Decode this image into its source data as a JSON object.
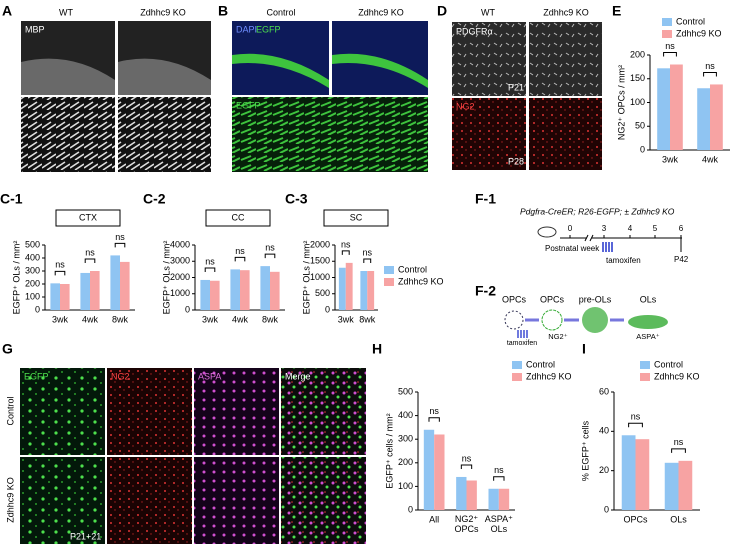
{
  "figure": {
    "A": {
      "label": "A",
      "columns": [
        "WT",
        "Zdhhc9 KO"
      ],
      "stain": "MBP"
    },
    "B": {
      "label": "B",
      "columns": [
        "Control",
        "Zdhhc9 KO"
      ],
      "top_stains": [
        "DAPI",
        "EGFP"
      ],
      "bottom_stain": "EGFP"
    },
    "D": {
      "label": "D",
      "columns": [
        "WT",
        "Zdhhc9 KO"
      ],
      "top_stain": "PDGFRα",
      "top_age": "P21",
      "bottom_stain": "NG2",
      "bottom_age": "P28"
    },
    "F1": {
      "label": "F-1",
      "genotype": "Pdgfra-CreER; R26-EGFP; ± Zdhhc9 KO",
      "weeks": [
        "0",
        "3",
        "4",
        "5",
        "6"
      ],
      "axis_label": "Postnatal week",
      "treatment": "tamoxifen",
      "end": "P42"
    },
    "F2": {
      "label": "F-2",
      "stages": [
        "OPCs",
        "OPCs",
        "pre-OLs",
        "OLs"
      ],
      "treatment": "tamoxifen",
      "markers": [
        "NG2⁺",
        "ASPA⁺"
      ]
    },
    "G": {
      "label": "G",
      "channels": [
        "EGFP",
        "NG2",
        "ASPA",
        "Merge"
      ],
      "rows": [
        "Control",
        "Zdhhc9 KO"
      ],
      "age": "P21+21"
    }
  },
  "chart_data": [
    {
      "type": "bar",
      "panel": "E",
      "y_label": "NG2⁺ OPCs / mm²",
      "categories": [
        "3wk",
        "4wk"
      ],
      "series": [
        {
          "name": "Control",
          "color": "#8fc4f2",
          "values": [
            172,
            130
          ]
        },
        {
          "name": "Zdhhc9 KO",
          "color": "#f7a3a3",
          "values": [
            180,
            138
          ]
        }
      ],
      "ylim": [
        0,
        200
      ],
      "yticks": [
        0,
        50,
        100,
        150,
        200
      ],
      "annotations": [
        "ns",
        "ns"
      ]
    },
    {
      "type": "bar",
      "panel": "C-1",
      "title": "CTX",
      "y_label": "EGFP⁺ OLs / mm²",
      "categories": [
        "3wk",
        "4wk",
        "8wk"
      ],
      "series": [
        {
          "color": "#8fc4f2",
          "values": [
            205,
            285,
            420
          ]
        },
        {
          "color": "#f7a3a3",
          "values": [
            200,
            300,
            370
          ]
        }
      ],
      "ylim": [
        0,
        500
      ],
      "yticks": [
        0,
        100,
        200,
        300,
        400,
        500
      ],
      "annotations": [
        "ns",
        "ns",
        "ns"
      ]
    },
    {
      "type": "bar",
      "panel": "C-2",
      "title": "CC",
      "y_label": "EGFP⁺ OLs / mm²",
      "categories": [
        "3wk",
        "4wk",
        "8wk"
      ],
      "series": [
        {
          "color": "#8fc4f2",
          "values": [
            1850,
            2500,
            2700
          ]
        },
        {
          "color": "#f7a3a3",
          "values": [
            1800,
            2450,
            2350
          ]
        }
      ],
      "ylim": [
        0,
        4000
      ],
      "yticks": [
        0,
        1000,
        2000,
        3000,
        4000
      ],
      "annotations": [
        "ns",
        "ns",
        "ns"
      ]
    },
    {
      "type": "bar",
      "panel": "C-3",
      "title": "SC",
      "y_label": "EGFP⁺ OLs / mm²",
      "categories": [
        "3wk",
        "8wk"
      ],
      "series": [
        {
          "name": "Control",
          "color": "#8fc4f2",
          "values": [
            1300,
            1200
          ]
        },
        {
          "name": "Zdhhc9 KO",
          "color": "#f7a3a3",
          "values": [
            1450,
            1200
          ]
        }
      ],
      "ylim": [
        0,
        2000
      ],
      "yticks": [
        0,
        500,
        1000,
        1500,
        2000
      ],
      "annotations": [
        "ns",
        "ns"
      ]
    },
    {
      "type": "bar",
      "panel": "H",
      "y_label": "EGFP⁺ cells / mm²",
      "categories": [
        "All",
        "NG2⁺ OPCs",
        "ASPA⁺ OLs"
      ],
      "series": [
        {
          "name": "Control",
          "color": "#8fc4f2",
          "values": [
            340,
            140,
            90
          ]
        },
        {
          "name": "Zdhhc9 KO",
          "color": "#f7a3a3",
          "values": [
            320,
            125,
            90
          ]
        }
      ],
      "ylim": [
        0,
        500
      ],
      "yticks": [
        0,
        100,
        200,
        300,
        400,
        500
      ],
      "annotations": [
        "ns",
        "ns",
        "ns"
      ]
    },
    {
      "type": "bar",
      "panel": "I",
      "y_label": "% EGFP⁺ cells",
      "categories": [
        "OPCs",
        "OLs"
      ],
      "series": [
        {
          "name": "Control",
          "color": "#8fc4f2",
          "values": [
            38,
            24
          ]
        },
        {
          "name": "Zdhhc9 KO",
          "color": "#f7a3a3",
          "values": [
            36,
            25
          ]
        }
      ],
      "ylim": [
        0,
        60
      ],
      "yticks": [
        0,
        20,
        40,
        60
      ],
      "annotations": [
        "ns",
        "ns"
      ]
    }
  ]
}
